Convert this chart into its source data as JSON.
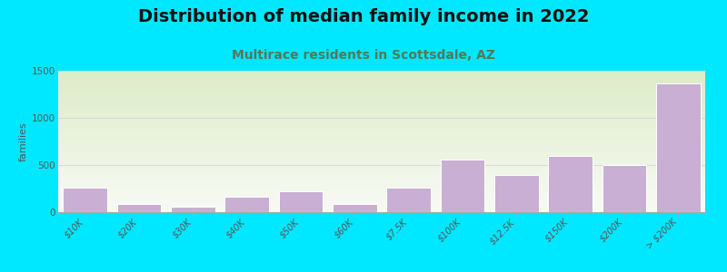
{
  "title": "Distribution of median family income in 2022",
  "subtitle": "Multirace residents in Scottsdale, AZ",
  "ylabel": "families",
  "categories": [
    "$10K",
    "$20K",
    "$30K",
    "$40K",
    "$50K",
    "$60K",
    "$7.5K",
    "$100K",
    "$12.5K",
    "$150K",
    "$200K",
    "> $200K"
  ],
  "values": [
    260,
    90,
    60,
    160,
    220,
    90,
    255,
    555,
    390,
    600,
    500,
    1370
  ],
  "bar_color": "#c9afd4",
  "bar_edge_color": "#ffffff",
  "background_fig": "#00e8ff",
  "grad_top": "#ddecc8",
  "grad_bottom": "#f8faf5",
  "title_fontsize": 14,
  "subtitle_fontsize": 10,
  "subtitle_color": "#557755",
  "ylabel_fontsize": 8,
  "ylim": [
    0,
    1500
  ],
  "yticks": [
    0,
    500,
    1000,
    1500
  ],
  "grid_color": "#ddccdd",
  "grid_alpha": 0.8,
  "tick_color": "#555555",
  "bar_width": 0.82
}
